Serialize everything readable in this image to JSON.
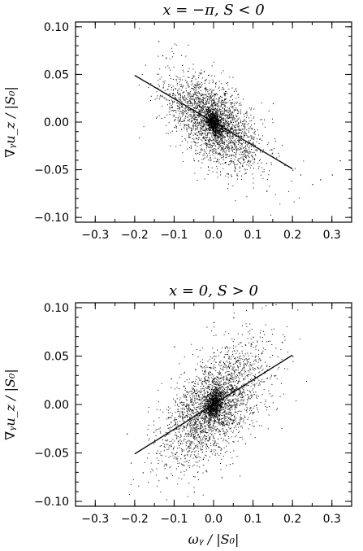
{
  "chart_data": [
    {
      "type": "scatter",
      "title": "x = −π, S < 0",
      "xlabel": "",
      "ylabel": "∇ᵧu_z / |S₀|",
      "xlim": [
        -0.35,
        0.35
      ],
      "ylim": [
        -0.105,
        0.105
      ],
      "xticks": [
        -0.3,
        -0.2,
        -0.1,
        0.0,
        0.1,
        0.2,
        0.3
      ],
      "xtick_labels": [
        "−0.3",
        "−0.2",
        "−0.1",
        "0.0",
        "0.1",
        "0.2",
        "0.3"
      ],
      "yticks": [
        -0.1,
        -0.05,
        0.0,
        0.05,
        0.1
      ],
      "ytick_labels": [
        "−0.10",
        "−0.05",
        "0.00",
        "0.05",
        "0.10"
      ],
      "fit_line": {
        "x": [
          -0.2,
          0.2
        ],
        "y": [
          0.049,
          -0.049
        ]
      },
      "scatter_cloud": {
        "slope": -0.24,
        "center": [
          0.0,
          0.0
        ],
        "x_spread": 0.06,
        "y_spread": 0.02,
        "n_points": 3200
      },
      "series": [
        {
          "points": [
            [
              -0.14,
              0.085
            ],
            [
              -0.13,
              0.07
            ],
            [
              -0.08,
              0.06
            ],
            [
              0.3,
              -0.055
            ],
            [
              0.27,
              -0.06
            ],
            [
              0.32,
              -0.04
            ],
            [
              0.25,
              -0.065
            ],
            [
              0.18,
              -0.045
            ],
            [
              0.2,
              -0.05
            ],
            [
              0.22,
              -0.055
            ],
            [
              -0.05,
              -0.04
            ],
            [
              0.15,
              0.02
            ],
            [
              -0.1,
              -0.005
            ]
          ]
        }
      ]
    },
    {
      "type": "scatter",
      "title": "x = 0, S > 0",
      "xlabel": "ωᵧ / |S₀|",
      "ylabel": "∇ᵧu_z / |S₀|",
      "xlim": [
        -0.35,
        0.35
      ],
      "ylim": [
        -0.105,
        0.105
      ],
      "xticks": [
        -0.3,
        -0.2,
        -0.1,
        0.0,
        0.1,
        0.2,
        0.3
      ],
      "xtick_labels": [
        "−0.3",
        "−0.2",
        "−0.1",
        "0.0",
        "0.1",
        "0.2",
        "0.3"
      ],
      "yticks": [
        -0.1,
        -0.05,
        0.0,
        0.05,
        0.1
      ],
      "ytick_labels": [
        "−0.10",
        "−0.05",
        "0.00",
        "0.05",
        "0.10"
      ],
      "fit_line": {
        "x": [
          -0.2,
          0.2
        ],
        "y": [
          -0.051,
          0.051
        ]
      },
      "scatter_cloud": {
        "slope": 0.25,
        "center": [
          0.0,
          0.0
        ],
        "x_spread": 0.065,
        "y_spread": 0.025,
        "n_points": 3400
      },
      "series": [
        {
          "points": [
            [
              0.0,
              0.085
            ],
            [
              -0.1,
              0.06
            ],
            [
              0.05,
              0.09
            ],
            [
              0.2,
              0.05
            ],
            [
              -0.22,
              -0.03
            ],
            [
              -0.21,
              -0.06
            ],
            [
              -0.18,
              -0.07
            ],
            [
              -0.05,
              -0.09
            ],
            [
              0.02,
              -0.075
            ],
            [
              -0.12,
              -0.075
            ],
            [
              0.1,
              0.07
            ],
            [
              0.08,
              -0.04
            ]
          ]
        }
      ]
    }
  ]
}
